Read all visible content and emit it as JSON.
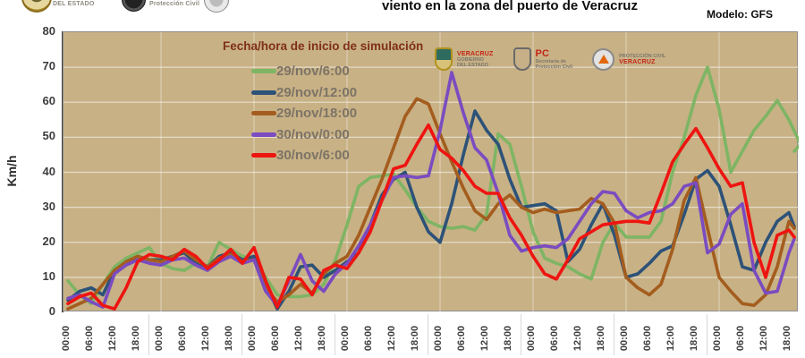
{
  "header": {
    "title": "viento en la zona del puerto de Veracruz",
    "model_label": "Modelo: GFS",
    "top_logos": [
      {
        "name": "gobierno-del-estado-seal",
        "caption": "DEL ESTADO"
      },
      {
        "name": "proteccion-civil-seal",
        "caption": "Protección Civil"
      },
      {
        "name": "veracruz-seal",
        "caption": ""
      }
    ]
  },
  "chart": {
    "ylabel": "Km/h",
    "legend_title": "Fecha/hora de inicio de simulación",
    "inner_logos": [
      {
        "name": "veracruz-gobierno-logo",
        "line1": "VERACRUZ",
        "line2": "GOBIERNO",
        "line3": "DEL ESTADO"
      },
      {
        "name": "pc-secretaria-logo",
        "line1": "PC",
        "line2": "Secretaría de",
        "line3": "Protección Civil"
      },
      {
        "name": "proteccion-civil-veracruz-logo",
        "line1": "PROTECCIÓN CIVIL",
        "line2": "VERACRUZ",
        "line3": ""
      }
    ]
  },
  "chart_data": {
    "type": "line",
    "title": "viento en la zona del puerto de Veracruz",
    "xlabel": "",
    "ylabel": "Km/h",
    "ylim": [
      0,
      80
    ],
    "y_ticks": [
      80,
      70,
      60,
      50,
      40,
      30,
      20,
      10,
      0
    ],
    "grid": true,
    "plot_bg": "#c8b185",
    "grid_color": "#e3dcc8",
    "legend_position": "top-left-inside",
    "x_step_hours": 3,
    "x_tick_labels": [
      "00:00",
      "06:00",
      "12:00",
      "18:00",
      "00:00",
      "06:00",
      "12:00",
      "18:00",
      "00:00",
      "06:00",
      "12:00",
      "18:00",
      "00:00",
      "06:00",
      "12:00",
      "18:00",
      "00:00",
      "06:00",
      "12:00",
      "18:00",
      "00:00",
      "06:00",
      "12:00",
      "18:00",
      "00:00",
      "06:00",
      "12:00",
      "18:00",
      "00:00",
      "06:00",
      "12:00",
      "18:00"
    ],
    "series": [
      {
        "name": "29/nov/6:00",
        "color": "#7eb564",
        "values": [
          9,
          5,
          2.5,
          8,
          13,
          15.5,
          17,
          18.5,
          14,
          12.5,
          12,
          14,
          13,
          20,
          18,
          16,
          15.5,
          10,
          5,
          4.5,
          4.5,
          5,
          8,
          15,
          25,
          36,
          38.5,
          39,
          39.5,
          35,
          30,
          26,
          24.5,
          24,
          24.5,
          23.5,
          28,
          51,
          48,
          36,
          23,
          15.5,
          14,
          13,
          11,
          9.5,
          20,
          25.5,
          21.5,
          21.5,
          21.5,
          26,
          40,
          50,
          62,
          70,
          58,
          40,
          46,
          52,
          56,
          60.5,
          55,
          48,
          46
        ]
      },
      {
        "name": "29/nov/12:00",
        "color": "#2d5278",
        "values": [
          3.5,
          6,
          7,
          5,
          12,
          14,
          16,
          15,
          15,
          16,
          17,
          14,
          13,
          16,
          17,
          15,
          16,
          8,
          1,
          6,
          13,
          13.5,
          10,
          12,
          14.5,
          17,
          25,
          33.5,
          38,
          40,
          30,
          23,
          20,
          31,
          45,
          57.5,
          52,
          48,
          38,
          30,
          30.5,
          31,
          29,
          14.5,
          18,
          25,
          31,
          22,
          10,
          11,
          14,
          17.5,
          19,
          28,
          38,
          40.5,
          36,
          25,
          13,
          12,
          20,
          26,
          28.5,
          24.5
        ]
      },
      {
        "name": "29/nov/18:00",
        "color": "#a45d1e",
        "values": [
          1,
          2.5,
          4,
          8,
          12,
          14.5,
          16,
          15,
          14.5,
          16,
          17.5,
          15,
          13,
          15.5,
          16.5,
          14.5,
          15,
          7,
          3,
          5,
          8,
          5.5,
          11,
          14,
          16,
          22,
          30,
          38,
          47,
          56,
          61,
          59.5,
          51,
          43,
          35.5,
          29,
          26.5,
          31,
          33.5,
          30,
          28.5,
          29.5,
          28.5,
          29,
          29.5,
          32.5,
          31,
          25.5,
          10,
          7,
          5,
          8,
          18,
          32,
          38.5,
          24,
          10,
          6,
          2.5,
          2,
          5,
          13,
          26,
          24
        ]
      },
      {
        "name": "30/nov/0:00",
        "color": "#7a4cc0",
        "values": [
          4,
          5,
          3,
          1.5,
          11,
          13.5,
          15,
          14,
          13.5,
          15,
          15.5,
          13.5,
          12,
          14.5,
          16,
          14,
          15,
          6,
          2,
          9,
          16.5,
          9,
          6,
          11,
          14,
          19,
          25,
          32,
          38.5,
          39,
          38.5,
          39,
          52,
          68.5,
          57,
          47,
          43.5,
          34,
          22,
          17.5,
          18.5,
          19,
          18.5,
          21,
          26,
          31,
          34.5,
          34,
          29,
          27,
          28.5,
          29,
          31,
          36,
          37,
          17,
          19.5,
          28,
          31,
          12,
          5.5,
          6,
          17,
          21
        ]
      },
      {
        "name": "30/nov/6:00",
        "color": "#ee1511",
        "values": [
          2.5,
          4.5,
          5.5,
          2,
          1,
          7,
          14.5,
          16.5,
          16,
          15,
          18,
          16,
          12.5,
          15,
          18,
          14,
          18.5,
          9,
          1.5,
          10,
          9.5,
          5,
          12,
          13.5,
          12.5,
          17,
          23,
          32,
          41,
          42,
          48,
          53.5,
          46.5,
          44,
          40.5,
          36,
          34,
          34,
          27,
          22,
          16,
          11,
          9.5,
          15,
          21,
          23,
          25,
          25.5,
          26,
          26,
          25.5,
          34,
          43,
          48,
          52.5,
          47,
          41,
          36,
          37,
          20,
          10,
          22,
          23.5,
          21.5
        ]
      }
    ]
  }
}
